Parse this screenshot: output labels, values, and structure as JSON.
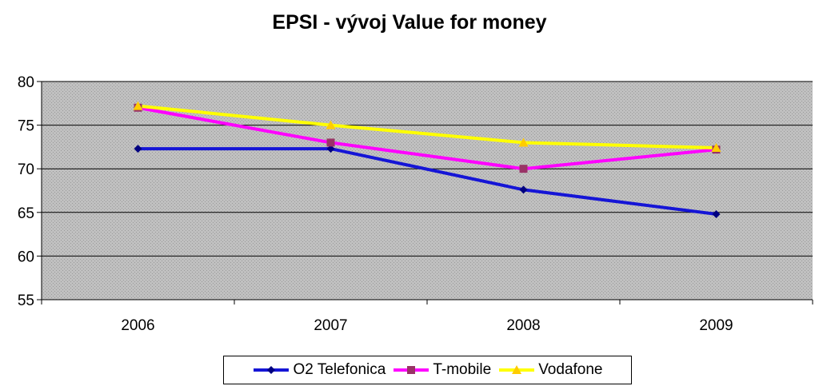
{
  "chart_data": {
    "type": "line",
    "title": "EPSI - vývoj Value for money",
    "categories": [
      "2006",
      "2007",
      "2008",
      "2009"
    ],
    "ylim": [
      55,
      80
    ],
    "yticks": [
      "55",
      "60",
      "65",
      "70",
      "75",
      "80"
    ],
    "grid": true,
    "legend_position": "bottom",
    "series": [
      {
        "name": "O2 Telefonica",
        "values": [
          72.3,
          72.3,
          67.6,
          64.8
        ],
        "color": "#1515d6",
        "marker": "diamond",
        "marker_color": "#000080"
      },
      {
        "name": "T-mobile",
        "values": [
          77.0,
          73.0,
          70.0,
          72.2
        ],
        "color": "#ff00ff",
        "marker": "square",
        "marker_color": "#993366"
      },
      {
        "name": "Vodafone",
        "values": [
          77.2,
          75.0,
          73.0,
          72.4
        ],
        "color": "#ffff00",
        "marker": "triangle",
        "marker_color": "#ffcc00"
      }
    ]
  }
}
